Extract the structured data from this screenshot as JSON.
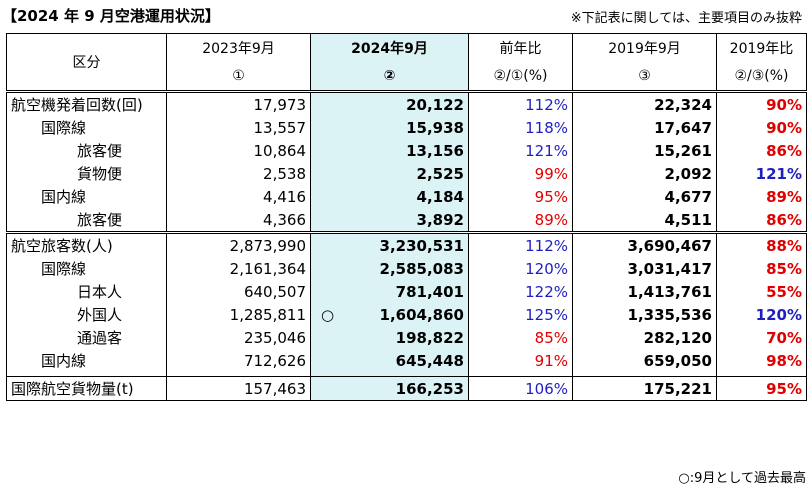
{
  "title": "【2024 年 9 月空港運用状況】",
  "note": "※下記表に関しては、主要項目のみ抜粋",
  "footnote": "○:9月として過去最高",
  "headers": {
    "category": "区分",
    "c1_line1": "2023年9月",
    "c1_line2": "①",
    "c2_line1": "2024年9月",
    "c2_line2": "②",
    "c3_line1": "前年比",
    "c3_line2": "②/①(%)",
    "c4_line1": "2019年9月",
    "c4_line2": "③",
    "c5_line1": "2019年比",
    "c5_line2": "②/③(%)"
  },
  "rows": [
    {
      "label": "航空機発着回数(回)",
      "v2023": "17,973",
      "v2024": "20,122",
      "yoy": "112%",
      "v2019": "22,324",
      "vs2019": "90%"
    },
    {
      "label": "国際線",
      "v2023": "13,557",
      "v2024": "15,938",
      "yoy": "118%",
      "v2019": "17,647",
      "vs2019": "90%"
    },
    {
      "label": "旅客便",
      "v2023": "10,864",
      "v2024": "13,156",
      "yoy": "121%",
      "v2019": "15,261",
      "vs2019": "86%"
    },
    {
      "label": "貨物便",
      "v2023": "2,538",
      "v2024": "2,525",
      "yoy": "99%",
      "v2019": "2,092",
      "vs2019": "121%"
    },
    {
      "label": "国内線",
      "v2023": "4,416",
      "v2024": "4,184",
      "yoy": "95%",
      "v2019": "4,677",
      "vs2019": "89%"
    },
    {
      "label": "旅客便",
      "v2023": "4,366",
      "v2024": "3,892",
      "yoy": "89%",
      "v2019": "4,511",
      "vs2019": "86%"
    },
    {
      "label": "航空旅客数(人)",
      "v2023": "2,873,990",
      "v2024": "3,230,531",
      "yoy": "112%",
      "v2019": "3,690,467",
      "vs2019": "88%"
    },
    {
      "label": "国際線",
      "v2023": "2,161,364",
      "v2024": "2,585,083",
      "yoy": "120%",
      "v2019": "3,031,417",
      "vs2019": "85%"
    },
    {
      "label": "日本人",
      "v2023": "640,507",
      "v2024": "781,401",
      "yoy": "122%",
      "v2019": "1,413,761",
      "vs2019": "55%"
    },
    {
      "label": "外国人",
      "v2023": "1,285,811",
      "v2024": "1,604,860",
      "marker": "○",
      "yoy": "125%",
      "v2019": "1,335,536",
      "vs2019": "120%"
    },
    {
      "label": "通過客",
      "v2023": "235,046",
      "v2024": "198,822",
      "yoy": "85%",
      "v2019": "282,120",
      "vs2019": "70%"
    },
    {
      "label": "国内線",
      "v2023": "712,626",
      "v2024": "645,448",
      "yoy": "91%",
      "v2019": "659,050",
      "vs2019": "98%"
    },
    {
      "label": "国際航空貨物量(t)",
      "v2023": "157,463",
      "v2024": "166,253",
      "yoy": "106%",
      "v2019": "175,221",
      "vs2019": "95%"
    }
  ],
  "colors": {
    "increase": "#1f1fbf",
    "decrease": "#e00000",
    "highlight": "#dcf3f6"
  }
}
